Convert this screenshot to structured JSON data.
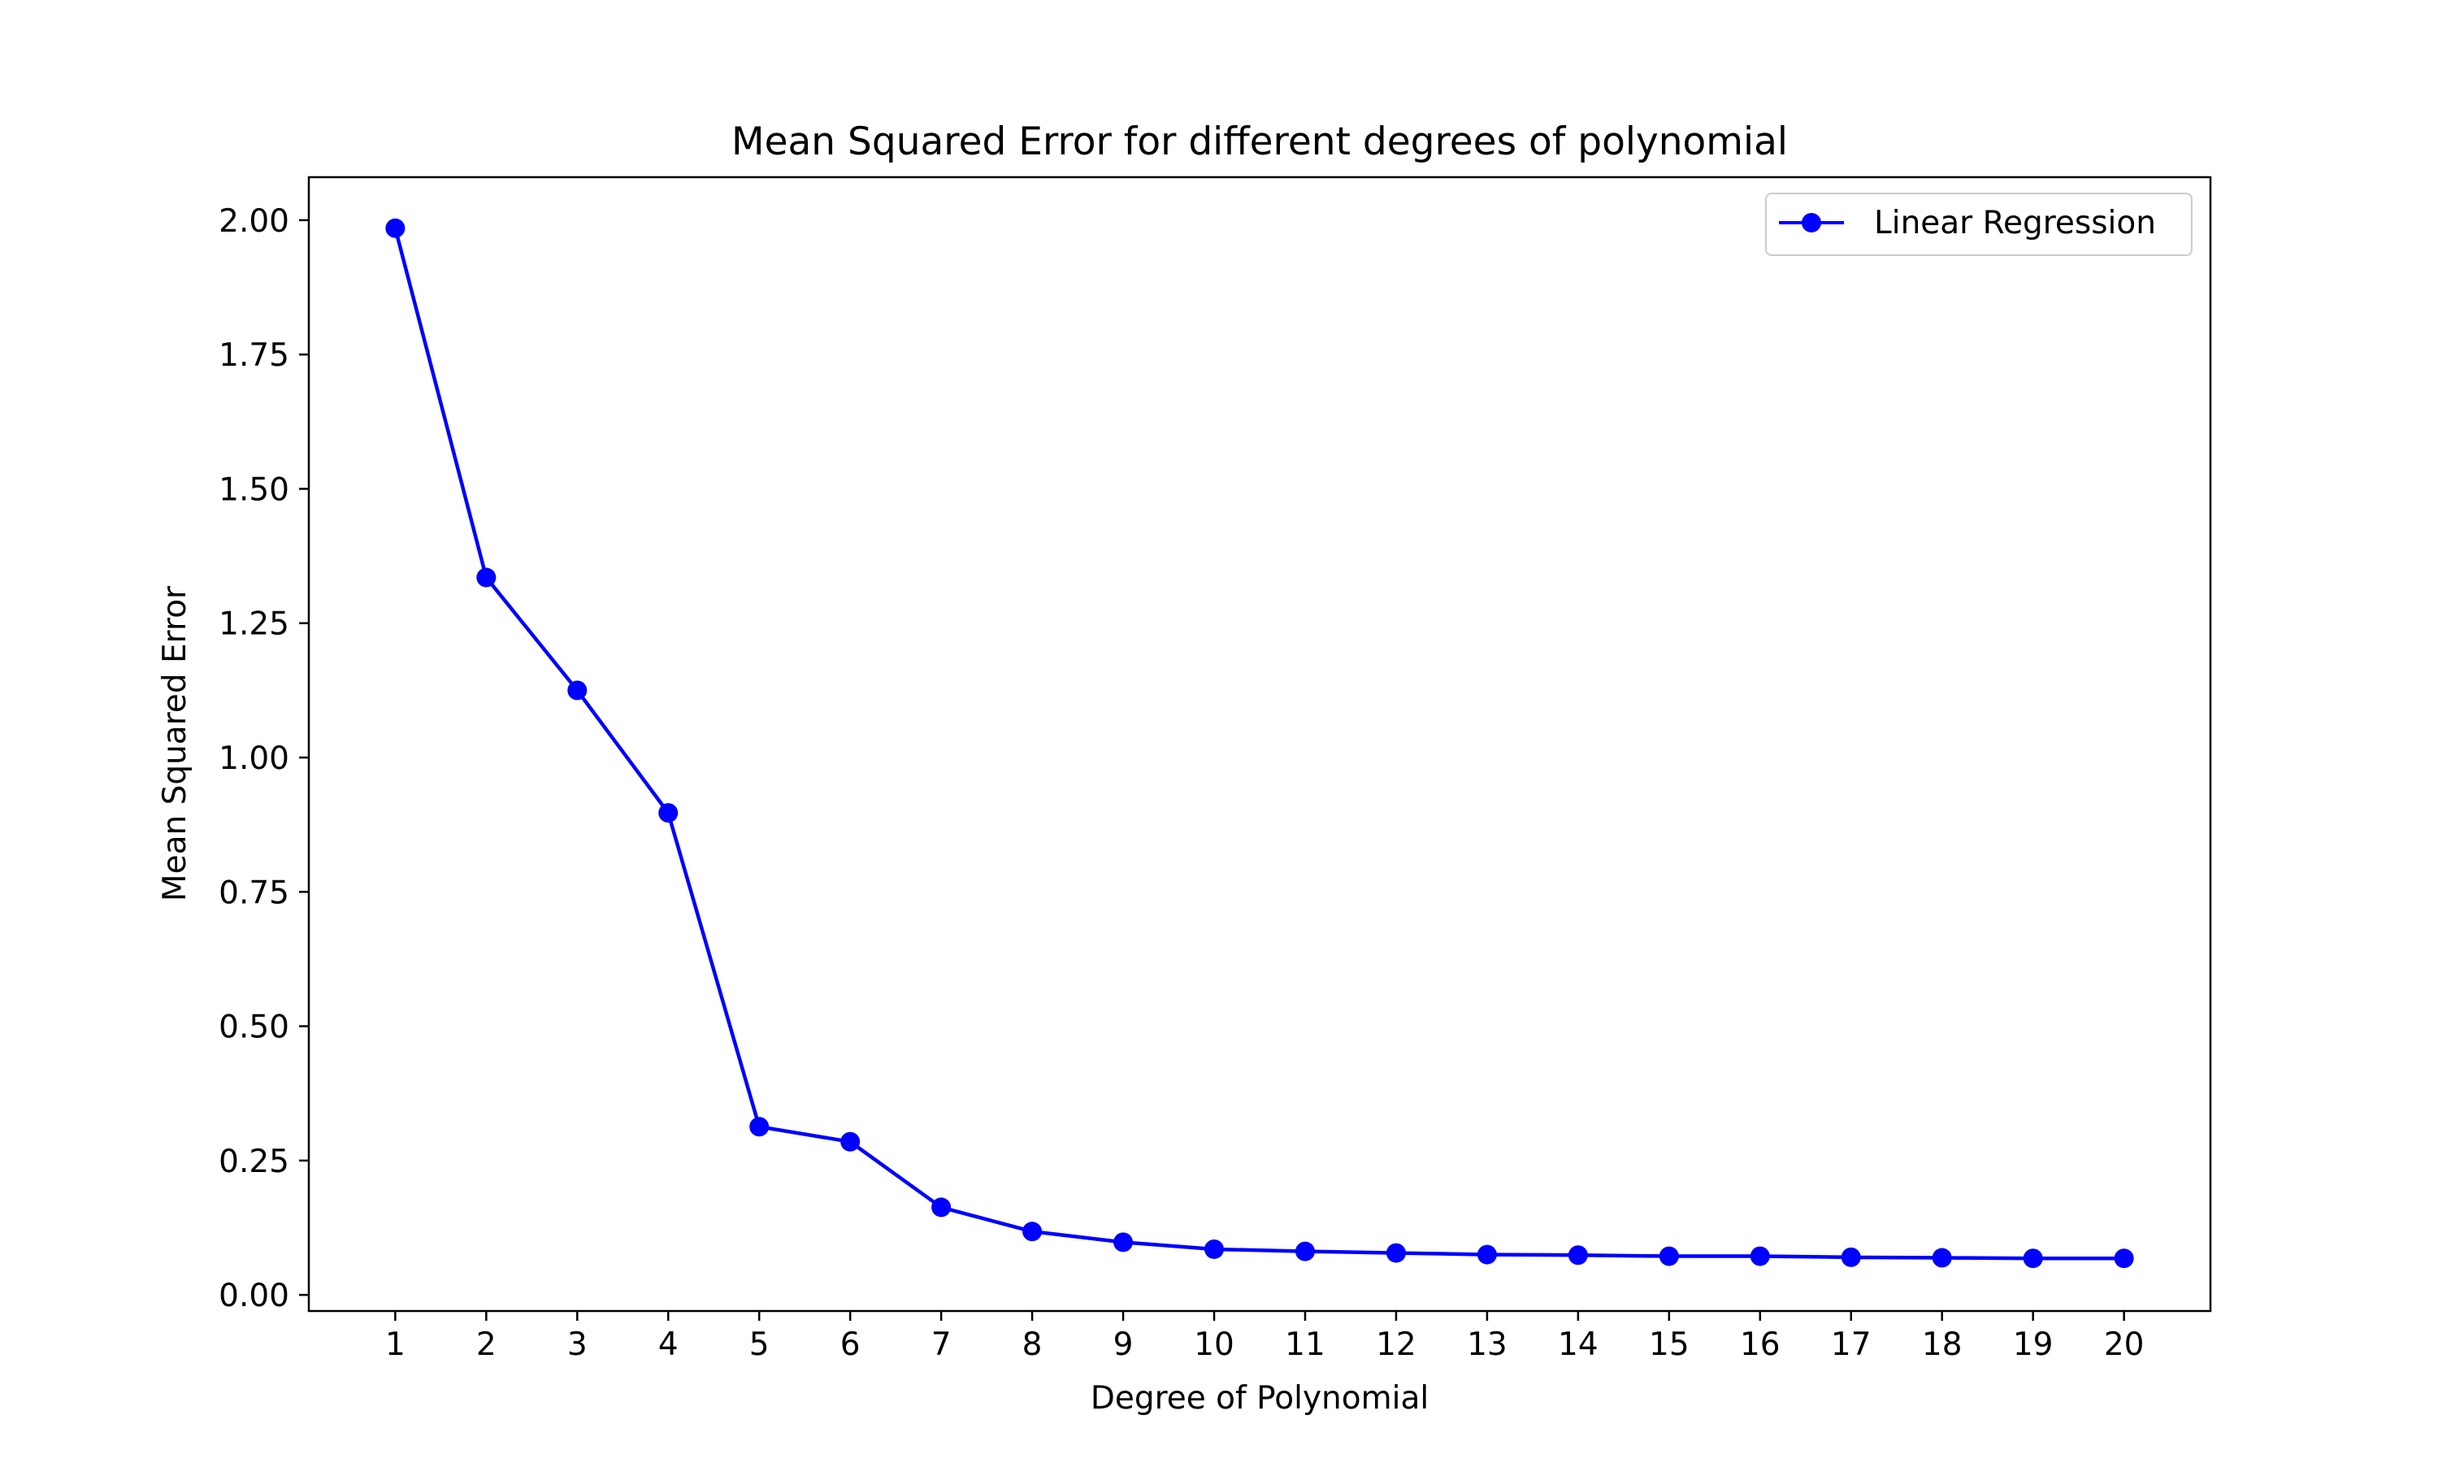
{
  "chart_data": {
    "type": "line",
    "title": "Mean Squared Error for different degrees of polynomial",
    "xlabel": "Degree of Polynomial",
    "ylabel": "Mean Squared Error",
    "x": [
      1,
      2,
      3,
      4,
      5,
      6,
      7,
      8,
      9,
      10,
      11,
      12,
      13,
      14,
      15,
      16,
      17,
      18,
      19,
      20
    ],
    "x_tick_labels": [
      "1",
      "2",
      "3",
      "4",
      "5",
      "6",
      "7",
      "8",
      "9",
      "10",
      "11",
      "12",
      "13",
      "14",
      "15",
      "16",
      "17",
      "18",
      "19",
      "20"
    ],
    "y_ticks": [
      0.0,
      0.25,
      0.5,
      0.75,
      1.0,
      1.25,
      1.5,
      1.75,
      2.0
    ],
    "y_tick_labels": [
      "0.00",
      "0.25",
      "0.50",
      "0.75",
      "1.00",
      "1.25",
      "1.50",
      "1.75",
      "2.00"
    ],
    "xlim": [
      0.05,
      20.95
    ],
    "ylim": [
      -0.03,
      2.08
    ],
    "grid": false,
    "legend_position": "top-right",
    "series": [
      {
        "name": "Linear Regression",
        "color": "#0000ff",
        "marker": "circle",
        "values": [
          1.985,
          1.335,
          1.125,
          0.897,
          0.313,
          0.285,
          0.163,
          0.118,
          0.098,
          0.085,
          0.081,
          0.078,
          0.075,
          0.074,
          0.072,
          0.072,
          0.07,
          0.069,
          0.068,
          0.068
        ]
      }
    ]
  }
}
